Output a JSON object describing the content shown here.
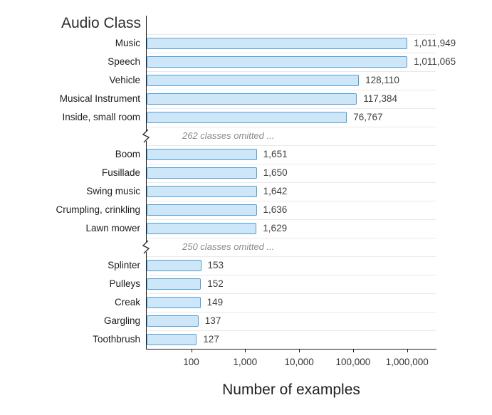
{
  "figure": {
    "background": "#ffffff"
  },
  "chart_data": {
    "type": "bar",
    "orientation": "horizontal",
    "x_scale": "log",
    "title": "Audio Class",
    "xlabel": "Number of examples",
    "xlim": [
      15,
      3400000
    ],
    "x_ticks": [
      "100",
      "1,000",
      "10,000",
      "100,000",
      "1,000,000"
    ],
    "x_tick_values": [
      100,
      1000,
      10000,
      100000,
      1000000
    ],
    "grid": "horizontal",
    "legend": "none",
    "bar_fill": "#cde7f8",
    "bar_stroke": "#4f9fd9",
    "axis_color": "#1a1a1a",
    "rows": [
      {
        "type": "bar",
        "label": "Music",
        "value": 1011949,
        "value_label": "1,011,949"
      },
      {
        "type": "bar",
        "label": "Speech",
        "value": 1011065,
        "value_label": "1,011,065"
      },
      {
        "type": "bar",
        "label": "Vehicle",
        "value": 128110,
        "value_label": "128,110"
      },
      {
        "type": "bar",
        "label": "Musical Instrument",
        "value": 117384,
        "value_label": "117,384"
      },
      {
        "type": "bar",
        "label": "Inside, small room",
        "value": 76767,
        "value_label": "76,767"
      },
      {
        "type": "break",
        "label": "262 classes omitted ..."
      },
      {
        "type": "bar",
        "label": "Boom",
        "value": 1651,
        "value_label": "1,651"
      },
      {
        "type": "bar",
        "label": "Fusillade",
        "value": 1650,
        "value_label": "1,650"
      },
      {
        "type": "bar",
        "label": "Swing music",
        "value": 1642,
        "value_label": "1,642"
      },
      {
        "type": "bar",
        "label": "Crumpling, crinkling",
        "value": 1636,
        "value_label": "1,636"
      },
      {
        "type": "bar",
        "label": "Lawn mower",
        "value": 1629,
        "value_label": "1,629"
      },
      {
        "type": "break",
        "label": "250 classes omitted ..."
      },
      {
        "type": "bar",
        "label": "Splinter",
        "value": 153,
        "value_label": "153"
      },
      {
        "type": "bar",
        "label": "Pulleys",
        "value": 152,
        "value_label": "152"
      },
      {
        "type": "bar",
        "label": "Creak",
        "value": 149,
        "value_label": "149"
      },
      {
        "type": "bar",
        "label": "Gargling",
        "value": 137,
        "value_label": "137"
      },
      {
        "type": "bar",
        "label": "Toothbrush",
        "value": 127,
        "value_label": "127"
      }
    ]
  }
}
